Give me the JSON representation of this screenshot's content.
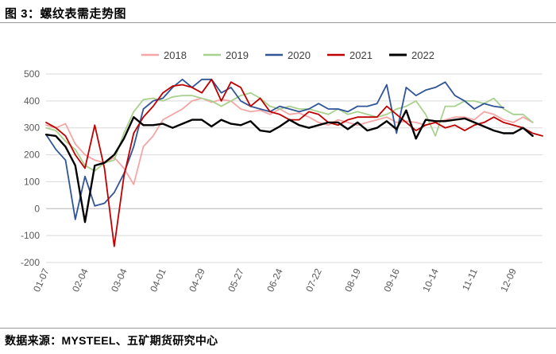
{
  "header": {
    "title": "图 3：螺纹表需走势图"
  },
  "footer": {
    "source": "数据来源：MYSTEEL、五矿期货研究中心"
  },
  "chart_data": {
    "type": "line",
    "title": "",
    "xlabel": "",
    "ylabel": "",
    "ylim": [
      -200,
      500
    ],
    "yticks": [
      500,
      400,
      300,
      200,
      100,
      0,
      -100,
      -200
    ],
    "grid": true,
    "legend_position": "top",
    "x_tick_labels": [
      "01-07",
      "02-04",
      "03-04",
      "04-01",
      "04-29",
      "05-27",
      "06-24",
      "07-22",
      "08-19",
      "09-16",
      "10-14",
      "11-11",
      "12-09"
    ],
    "num_points": 52,
    "series": [
      {
        "name": "2018",
        "color": "#f4a6a6",
        "width": 1.8,
        "values": [
          310,
          300,
          315,
          240,
          200,
          180,
          170,
          190,
          150,
          90,
          230,
          270,
          330,
          350,
          370,
          400,
          410,
          395,
          405,
          400,
          370,
          360,
          365,
          350,
          370,
          350,
          355,
          340,
          320,
          310,
          330,
          320,
          310,
          320,
          330,
          340,
          320,
          325,
          320,
          310,
          320,
          330,
          340,
          340,
          330,
          360,
          350,
          330,
          320,
          340,
          320,
          null
        ]
      },
      {
        "name": "2019",
        "color": "#a9d18e",
        "width": 1.8,
        "values": [
          300,
          290,
          250,
          220,
          160,
          140,
          170,
          180,
          280,
          360,
          405,
          410,
          400,
          415,
          420,
          420,
          410,
          400,
          380,
          400,
          420,
          430,
          410,
          380,
          370,
          380,
          370,
          370,
          360,
          350,
          370,
          350,
          360,
          350,
          340,
          350,
          370,
          380,
          400,
          350,
          270,
          380,
          380,
          400,
          400,
          390,
          410,
          370,
          350,
          350,
          320,
          null
        ]
      },
      {
        "name": "2020",
        "color": "#2f5597",
        "width": 1.8,
        "values": [
          275,
          220,
          180,
          -40,
          120,
          10,
          20,
          60,
          130,
          230,
          370,
          400,
          410,
          450,
          480,
          450,
          480,
          480,
          430,
          450,
          400,
          380,
          370,
          360,
          380,
          370,
          360,
          370,
          390,
          370,
          370,
          360,
          380,
          380,
          390,
          460,
          280,
          450,
          420,
          440,
          450,
          470,
          420,
          400,
          370,
          390,
          380,
          375,
          null,
          null,
          null,
          null
        ]
      },
      {
        "name": "2021",
        "color": "#c00000",
        "width": 1.8,
        "values": [
          320,
          300,
          270,
          200,
          150,
          310,
          150,
          -140,
          120,
          280,
          340,
          380,
          430,
          455,
          460,
          450,
          430,
          480,
          400,
          470,
          450,
          380,
          410,
          360,
          350,
          330,
          330,
          360,
          350,
          320,
          310,
          330,
          340,
          340,
          340,
          380,
          350,
          320,
          290,
          310,
          320,
          300,
          310,
          290,
          310,
          320,
          340,
          320,
          310,
          300,
          280,
          270
        ]
      },
      {
        "name": "2022",
        "color": "#000000",
        "width": 2.4,
        "values": [
          275,
          270,
          230,
          160,
          -50,
          160,
          170,
          200,
          260,
          340,
          310,
          310,
          315,
          300,
          315,
          330,
          330,
          305,
          330,
          315,
          310,
          325,
          290,
          285,
          305,
          330,
          310,
          300,
          310,
          320,
          320,
          295,
          320,
          290,
          300,
          325,
          295,
          365,
          260,
          330,
          325,
          325,
          330,
          335,
          320,
          305,
          290,
          280,
          280,
          300,
          270,
          null
        ]
      }
    ]
  }
}
